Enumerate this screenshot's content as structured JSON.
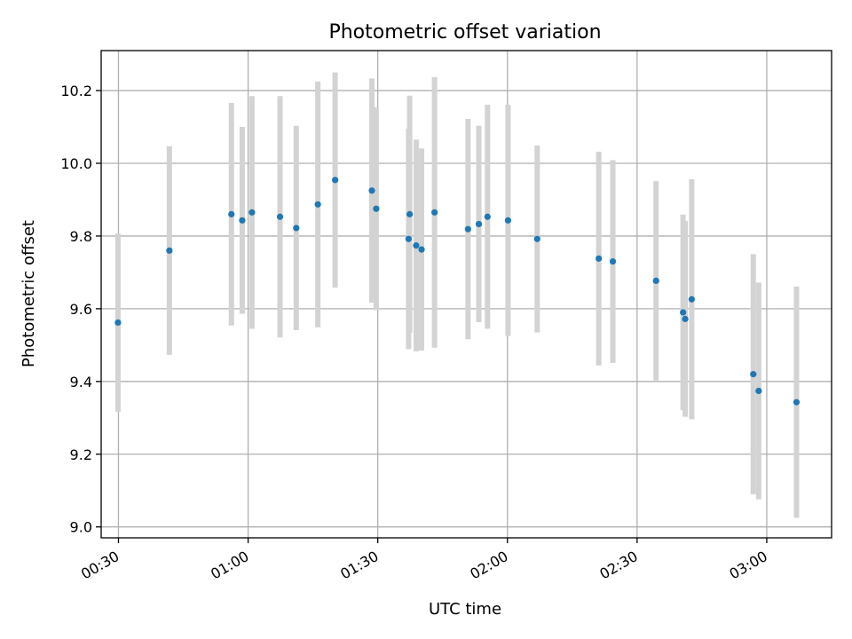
{
  "chart_data": {
    "type": "scatter",
    "title": "Photometric offset variation",
    "xlabel": "UTC time",
    "ylabel": "Photometric offset",
    "x_tick_labels": [
      "00:30",
      "01:00",
      "01:30",
      "02:00",
      "02:30",
      "03:00"
    ],
    "y_tick_labels": [
      "9.0",
      "9.2",
      "9.4",
      "9.6",
      "9.8",
      "10.0",
      "10.2"
    ],
    "x_ticks": [
      "00:30",
      "01:00",
      "01:30",
      "02:00",
      "02:30",
      "03:00"
    ],
    "y_ticks": [
      9.0,
      9.2,
      9.4,
      9.6,
      9.8,
      10.0,
      10.2
    ],
    "xlim": [
      "00:26:00",
      "03:15:00"
    ],
    "ylim": [
      8.97,
      10.31
    ],
    "grid": true,
    "colors": {
      "points": "#1f77b4",
      "error_bars": "#d3d3d3",
      "grid": "#b0b0b0"
    },
    "points": [
      {
        "x": "00:29:53",
        "y": 9.562,
        "yerr": 0.245
      },
      {
        "x": "00:41:47",
        "y": 9.76,
        "yerr": 0.287
      },
      {
        "x": "00:56:08",
        "y": 9.86,
        "yerr": 0.306
      },
      {
        "x": "00:58:38",
        "y": 9.843,
        "yerr": 0.257
      },
      {
        "x": "01:00:53",
        "y": 9.865,
        "yerr": 0.32
      },
      {
        "x": "01:07:23",
        "y": 9.853,
        "yerr": 0.332
      },
      {
        "x": "01:11:08",
        "y": 9.822,
        "yerr": 0.281
      },
      {
        "x": "01:16:08",
        "y": 9.887,
        "yerr": 0.338
      },
      {
        "x": "01:20:08",
        "y": 9.954,
        "yerr": 0.296
      },
      {
        "x": "01:28:38",
        "y": 9.925,
        "yerr": 0.308
      },
      {
        "x": "01:29:38",
        "y": 9.875,
        "yerr": 0.279
      },
      {
        "x": "01:37:23",
        "y": 9.86,
        "yerr": 0.326
      },
      {
        "x": "01:37:08",
        "y": 9.792,
        "yerr": 0.303
      },
      {
        "x": "01:38:53",
        "y": 9.774,
        "yerr": 0.291
      },
      {
        "x": "01:40:08",
        "y": 9.763,
        "yerr": 0.278
      },
      {
        "x": "01:43:08",
        "y": 9.865,
        "yerr": 0.372
      },
      {
        "x": "01:50:53",
        "y": 9.819,
        "yerr": 0.303
      },
      {
        "x": "01:53:23",
        "y": 9.833,
        "yerr": 0.27
      },
      {
        "x": "01:55:23",
        "y": 9.853,
        "yerr": 0.308
      },
      {
        "x": "02:00:08",
        "y": 9.843,
        "yerr": 0.318
      },
      {
        "x": "02:06:53",
        "y": 9.792,
        "yerr": 0.257
      },
      {
        "x": "02:21:08",
        "y": 9.738,
        "yerr": 0.294
      },
      {
        "x": "02:24:23",
        "y": 9.73,
        "yerr": 0.279
      },
      {
        "x": "02:34:23",
        "y": 9.677,
        "yerr": 0.274
      },
      {
        "x": "02:40:38",
        "y": 9.59,
        "yerr": 0.269
      },
      {
        "x": "02:41:08",
        "y": 9.572,
        "yerr": 0.269
      },
      {
        "x": "02:42:38",
        "y": 9.626,
        "yerr": 0.33
      },
      {
        "x": "02:56:53",
        "y": 9.42,
        "yerr": 0.33
      },
      {
        "x": "02:58:08",
        "y": 9.374,
        "yerr": 0.298
      },
      {
        "x": "03:06:53",
        "y": 9.343,
        "yerr": 0.318
      }
    ]
  }
}
